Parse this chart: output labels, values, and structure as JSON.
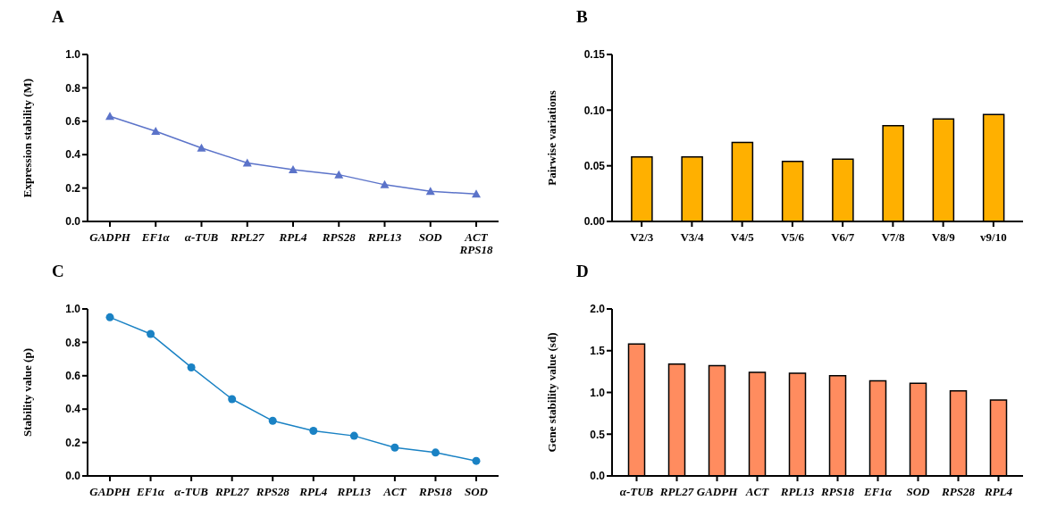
{
  "chart_data": [
    {
      "type": "line",
      "title": "A",
      "ylabel": "Expression stability (M)",
      "categories": [
        "GADPH",
        "EF1α",
        "α-TUB",
        "RPL27",
        "RPL4",
        "RPS28",
        "RPL13",
        "SOD",
        "ACT\nRPS18"
      ],
      "values": [
        0.63,
        0.54,
        0.44,
        0.35,
        0.31,
        0.28,
        0.22,
        0.18,
        0.165
      ],
      "color": "#5b73c9",
      "marker": "triangle",
      "ylim": [
        0,
        1.0
      ],
      "yticks": [
        {
          "value": 0,
          "label": "0.0"
        },
        {
          "value": 0.2,
          "label": "0.2"
        },
        {
          "value": 0.4,
          "label": "0.4"
        },
        {
          "value": 0.6,
          "label": "0.6"
        },
        {
          "value": 0.8,
          "label": "0.8"
        },
        {
          "value": 1.0,
          "label": "1.0"
        }
      ]
    },
    {
      "type": "bar",
      "title": "B",
      "ylabel": "Pairwise variations",
      "categories": [
        "V2/3",
        "V3/4",
        "V4/5",
        "V5/6",
        "V6/7",
        "V7/8",
        "V8/9",
        "v9/10"
      ],
      "values": [
        0.058,
        0.058,
        0.071,
        0.054,
        0.056,
        0.086,
        0.092,
        0.096
      ],
      "color": "#ffb000",
      "ylim": [
        0,
        0.15
      ],
      "yticks": [
        {
          "value": 0,
          "label": "0.00"
        },
        {
          "value": 0.05,
          "label": "0.05"
        },
        {
          "value": 0.1,
          "label": "0.10"
        },
        {
          "value": 0.15,
          "label": "0.15"
        }
      ]
    },
    {
      "type": "line",
      "title": "C",
      "ylabel": "Stability value (p)",
      "categories": [
        "GADPH",
        "EF1α",
        "α-TUB",
        "RPL27",
        "RPS28",
        "RPL4",
        "RPL13",
        "ACT",
        "RPS18",
        "SOD"
      ],
      "values": [
        0.95,
        0.85,
        0.65,
        0.46,
        0.33,
        0.27,
        0.24,
        0.17,
        0.14,
        0.09
      ],
      "color": "#1a82c4",
      "marker": "circle",
      "ylim": [
        0,
        1.0
      ],
      "yticks": [
        {
          "value": 0,
          "label": "0.0"
        },
        {
          "value": 0.2,
          "label": "0.2"
        },
        {
          "value": 0.4,
          "label": "0.4"
        },
        {
          "value": 0.6,
          "label": "0.6"
        },
        {
          "value": 0.8,
          "label": "0.8"
        },
        {
          "value": 1.0,
          "label": "1.0"
        }
      ]
    },
    {
      "type": "bar",
      "title": "D",
      "ylabel": "Gene stability value (sd)",
      "categories": [
        "α-TUB",
        "RPL27",
        "GADPH",
        "ACT",
        "RPL13",
        "RPS18",
        "EF1α",
        "SOD",
        "RPS28",
        "RPL4"
      ],
      "values": [
        1.58,
        1.34,
        1.32,
        1.24,
        1.23,
        1.2,
        1.14,
        1.11,
        1.02,
        0.91
      ],
      "color": "#ff8c5f",
      "ylim": [
        0,
        2.0
      ],
      "yticks": [
        {
          "value": 0,
          "label": "0.0"
        },
        {
          "value": 0.5,
          "label": "0.5"
        },
        {
          "value": 1.0,
          "label": "1.0"
        },
        {
          "value": 1.5,
          "label": "1.5"
        },
        {
          "value": 2.0,
          "label": "2.0"
        }
      ]
    }
  ]
}
